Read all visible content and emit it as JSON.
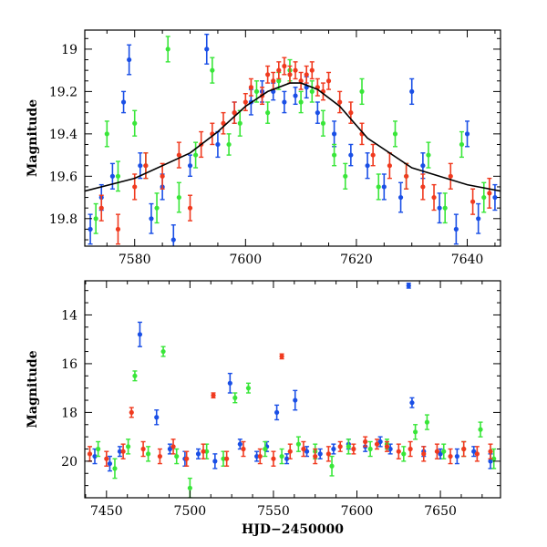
{
  "chart_data": [
    {
      "type": "scatter",
      "title": "",
      "xlabel": "",
      "ylabel": "Magnitude",
      "xlim": [
        7571,
        7646
      ],
      "ylim": [
        19.93,
        18.91
      ],
      "y_inverted": true,
      "grid": false,
      "xticks": [
        7580,
        7600,
        7620,
        7640
      ],
      "yticks": [
        19.0,
        19.2,
        19.4,
        19.6,
        19.8
      ],
      "xtick_labels": [
        "7580",
        "7600",
        "7620",
        "7640"
      ],
      "ytick_labels": [
        "19",
        "19.2",
        "19.4",
        "19.6",
        "19.8"
      ],
      "colors": {
        "blue": "#1a4fe6",
        "green": "#39e639",
        "red": "#f03a1f",
        "model": "#000000"
      },
      "model_curve": {
        "name": "",
        "x": [
          7571,
          7580,
          7590,
          7595,
          7600,
          7604,
          7608,
          7610,
          7613,
          7617,
          7622,
          7630,
          7640,
          7646
        ],
        "y": [
          19.67,
          19.61,
          19.49,
          19.39,
          19.27,
          19.2,
          19.16,
          19.16,
          19.19,
          19.27,
          19.42,
          19.56,
          19.64,
          19.67
        ]
      },
      "series": [
        {
          "color": "blue",
          "x": [
            7572,
            7574,
            7576,
            7578,
            7579,
            7581,
            7583,
            7585,
            7587,
            7590,
            7593,
            7595,
            7598,
            7601,
            7603,
            7605,
            7607,
            7609,
            7611,
            7613,
            7616,
            7619,
            7622,
            7625,
            7628,
            7630,
            7632,
            7635,
            7638,
            7640,
            7642,
            7645
          ],
          "y": [
            19.85,
            19.7,
            19.6,
            19.25,
            19.05,
            19.55,
            19.8,
            19.65,
            19.9,
            19.55,
            19.0,
            19.45,
            19.3,
            19.25,
            19.2,
            19.2,
            19.25,
            19.22,
            19.18,
            19.3,
            19.4,
            19.5,
            19.55,
            19.65,
            19.7,
            19.2,
            19.55,
            19.75,
            19.85,
            19.4,
            19.8,
            19.7
          ],
          "err": [
            0.07,
            0.06,
            0.06,
            0.05,
            0.07,
            0.06,
            0.07,
            0.06,
            0.07,
            0.05,
            0.07,
            0.06,
            0.05,
            0.06,
            0.05,
            0.04,
            0.05,
            0.04,
            0.05,
            0.05,
            0.06,
            0.05,
            0.06,
            0.06,
            0.07,
            0.06,
            0.06,
            0.07,
            0.07,
            0.06,
            0.07,
            0.06
          ]
        },
        {
          "color": "green",
          "x": [
            7573,
            7575,
            7577,
            7580,
            7582,
            7584,
            7586,
            7588,
            7591,
            7594,
            7597,
            7599,
            7602,
            7604,
            7606,
            7608,
            7610,
            7612,
            7614,
            7616,
            7618,
            7621,
            7624,
            7627,
            7629,
            7633,
            7636,
            7639,
            7643
          ],
          "y": [
            19.8,
            19.4,
            19.6,
            19.35,
            19.55,
            19.75,
            19.0,
            19.7,
            19.5,
            19.1,
            19.45,
            19.35,
            19.2,
            19.3,
            19.15,
            19.1,
            19.25,
            19.2,
            19.35,
            19.5,
            19.6,
            19.2,
            19.65,
            19.4,
            19.6,
            19.5,
            19.75,
            19.45,
            19.7
          ],
          "err": [
            0.07,
            0.06,
            0.07,
            0.06,
            0.06,
            0.07,
            0.06,
            0.07,
            0.06,
            0.06,
            0.05,
            0.06,
            0.05,
            0.05,
            0.04,
            0.05,
            0.05,
            0.05,
            0.06,
            0.05,
            0.06,
            0.06,
            0.06,
            0.06,
            0.06,
            0.06,
            0.07,
            0.06,
            0.07
          ]
        },
        {
          "color": "red",
          "x": [
            7574,
            7577,
            7580,
            7582,
            7585,
            7588,
            7590,
            7592,
            7594,
            7596,
            7598,
            7600,
            7601,
            7603,
            7604,
            7605,
            7606,
            7607,
            7608,
            7609,
            7610,
            7611,
            7612,
            7613,
            7614,
            7615,
            7617,
            7619,
            7621,
            7623,
            7626,
            7629,
            7632,
            7634,
            7637,
            7641,
            7644
          ],
          "y": [
            19.75,
            19.85,
            19.65,
            19.55,
            19.6,
            19.5,
            19.75,
            19.45,
            19.4,
            19.35,
            19.3,
            19.25,
            19.18,
            19.22,
            19.12,
            19.15,
            19.1,
            19.08,
            19.12,
            19.1,
            19.15,
            19.12,
            19.1,
            19.18,
            19.2,
            19.15,
            19.25,
            19.3,
            19.4,
            19.5,
            19.55,
            19.6,
            19.65,
            19.7,
            19.6,
            19.72,
            19.68
          ],
          "err": [
            0.06,
            0.07,
            0.06,
            0.06,
            0.06,
            0.06,
            0.06,
            0.06,
            0.05,
            0.05,
            0.05,
            0.04,
            0.04,
            0.04,
            0.04,
            0.04,
            0.04,
            0.04,
            0.04,
            0.04,
            0.04,
            0.04,
            0.04,
            0.04,
            0.04,
            0.04,
            0.05,
            0.05,
            0.05,
            0.05,
            0.06,
            0.06,
            0.06,
            0.06,
            0.06,
            0.06,
            0.07
          ]
        }
      ]
    },
    {
      "type": "scatter",
      "title": "",
      "xlabel": "HJD−2450000",
      "ylabel": "Magnitude",
      "xlim": [
        7437,
        7686
      ],
      "ylim": [
        21.5,
        12.6
      ],
      "y_inverted": true,
      "grid": false,
      "xticks": [
        7450,
        7500,
        7550,
        7600,
        7650
      ],
      "yticks": [
        14,
        16,
        18,
        20
      ],
      "xtick_labels": [
        "7450",
        "7500",
        "7550",
        "7600",
        "7650"
      ],
      "ytick_labels": [
        "14",
        "16",
        "18",
        "20"
      ],
      "colors": {
        "blue": "#1a4fe6",
        "green": "#39e639",
        "red": "#f03a1f"
      },
      "series": [
        {
          "color": "blue",
          "x": [
            7443,
            7452,
            7458,
            7470,
            7480,
            7488,
            7497,
            7505,
            7515,
            7524,
            7530,
            7540,
            7546,
            7552,
            7558,
            7563,
            7570,
            7578,
            7586,
            7595,
            7605,
            7614,
            7620,
            7631,
            7633,
            7640,
            7650,
            7660,
            7670,
            7680
          ],
          "y": [
            19.8,
            20.1,
            19.6,
            14.8,
            18.2,
            19.5,
            19.9,
            19.7,
            20.0,
            16.8,
            19.3,
            19.8,
            19.4,
            18.0,
            19.9,
            17.5,
            19.6,
            19.7,
            19.5,
            19.3,
            19.4,
            19.2,
            19.5,
            12.8,
            17.6,
            19.6,
            19.7,
            19.8,
            19.6,
            20.0
          ],
          "err": [
            0.3,
            0.3,
            0.2,
            0.5,
            0.3,
            0.2,
            0.3,
            0.2,
            0.3,
            0.4,
            0.2,
            0.2,
            0.2,
            0.3,
            0.2,
            0.4,
            0.2,
            0.2,
            0.2,
            0.2,
            0.2,
            0.2,
            0.2,
            0.1,
            0.2,
            0.2,
            0.2,
            0.3,
            0.2,
            0.3
          ]
        },
        {
          "color": "green",
          "x": [
            7445,
            7455,
            7463,
            7467,
            7475,
            7484,
            7492,
            7500,
            7510,
            7520,
            7527,
            7535,
            7545,
            7555,
            7565,
            7575,
            7585,
            7595,
            7608,
            7618,
            7628,
            7635,
            7642,
            7652,
            7664,
            7674,
            7682
          ],
          "y": [
            19.5,
            20.3,
            19.4,
            16.5,
            19.7,
            15.5,
            19.8,
            21.1,
            19.6,
            19.9,
            17.4,
            17.0,
            19.5,
            19.8,
            19.3,
            19.6,
            20.2,
            19.4,
            19.5,
            19.3,
            19.7,
            18.8,
            18.4,
            19.6,
            19.5,
            18.7,
            19.9
          ],
          "err": [
            0.3,
            0.4,
            0.3,
            0.2,
            0.3,
            0.2,
            0.3,
            0.4,
            0.3,
            0.3,
            0.2,
            0.2,
            0.3,
            0.3,
            0.3,
            0.3,
            0.4,
            0.3,
            0.3,
            0.2,
            0.3,
            0.3,
            0.3,
            0.3,
            0.3,
            0.3,
            0.4
          ]
        },
        {
          "color": "red",
          "x": [
            7440,
            7450,
            7460,
            7465,
            7472,
            7482,
            7490,
            7498,
            7508,
            7514,
            7522,
            7532,
            7542,
            7550,
            7555,
            7560,
            7568,
            7575,
            7583,
            7590,
            7598,
            7605,
            7612,
            7618,
            7625,
            7632,
            7640,
            7648,
            7656,
            7664,
            7672,
            7680
          ],
          "y": [
            19.7,
            19.9,
            19.6,
            18.0,
            19.5,
            19.8,
            19.4,
            19.9,
            19.6,
            17.3,
            19.9,
            19.5,
            19.8,
            19.9,
            15.7,
            19.6,
            19.5,
            19.8,
            19.7,
            19.4,
            19.5,
            19.2,
            19.3,
            19.4,
            19.6,
            19.5,
            19.7,
            19.6,
            19.8,
            19.5,
            19.7,
            19.6
          ],
          "err": [
            0.3,
            0.3,
            0.3,
            0.2,
            0.3,
            0.3,
            0.3,
            0.3,
            0.3,
            0.1,
            0.3,
            0.3,
            0.3,
            0.3,
            0.1,
            0.3,
            0.3,
            0.3,
            0.3,
            0.2,
            0.2,
            0.2,
            0.2,
            0.2,
            0.3,
            0.3,
            0.3,
            0.3,
            0.3,
            0.3,
            0.3,
            0.3
          ]
        }
      ]
    }
  ]
}
